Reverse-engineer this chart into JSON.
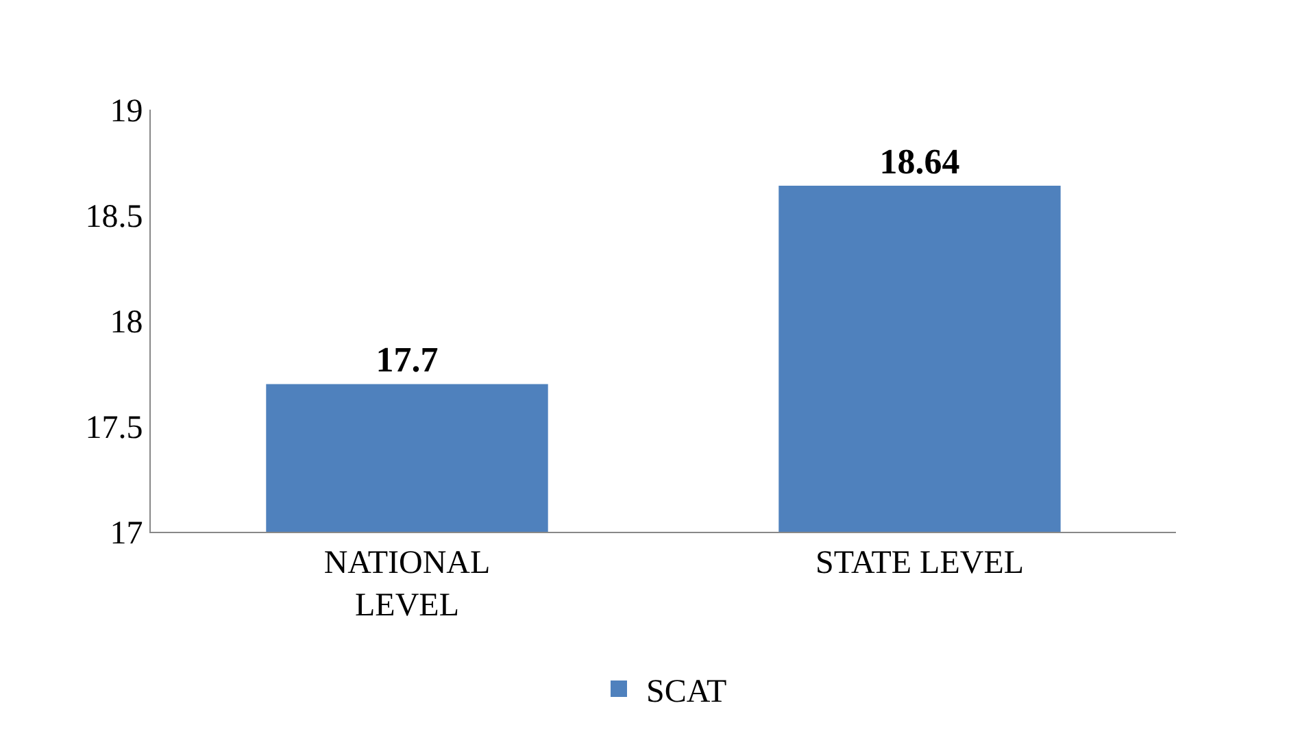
{
  "chart_data": {
    "type": "bar",
    "categories": [
      "NATIONAL LEVEL",
      "STATE LEVEL"
    ],
    "series": [
      {
        "name": "SCAT",
        "color": "#4f81bd",
        "values": [
          17.7,
          18.64
        ]
      }
    ],
    "ylim": [
      17,
      19
    ],
    "yticks": [
      17,
      17.5,
      18,
      18.5,
      19
    ],
    "data_labels": true,
    "legend": "bottom"
  }
}
